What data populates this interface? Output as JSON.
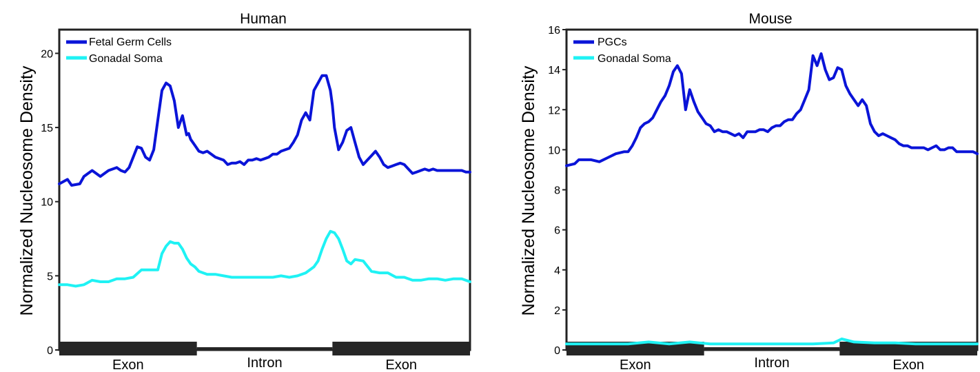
{
  "chart_data": [
    {
      "type": "line",
      "title": "Human",
      "xlabel": "",
      "ylabel": "Normalized Nucleosome Density",
      "ylim": [
        0,
        21.6
      ],
      "yticks": [
        0,
        5,
        10,
        15,
        20
      ],
      "xlim": [
        0,
        100
      ],
      "regions": [
        {
          "label": "Exon",
          "start": 0,
          "end": 33.5
        },
        {
          "label": "Intron",
          "start": 33.5,
          "end": 66.5
        },
        {
          "label": "Exon",
          "start": 66.5,
          "end": 100
        }
      ],
      "legend_position": "top-left",
      "series": [
        {
          "name": "Fetal Germ Cells",
          "color": "#0a14d8",
          "x": [
            0,
            2,
            3,
            5,
            6,
            8,
            9,
            10,
            12,
            14,
            15,
            16,
            17,
            18,
            19,
            20,
            21,
            22,
            23,
            24,
            25,
            26,
            27,
            28,
            29,
            30,
            31,
            31.5,
            32,
            33,
            34,
            35,
            36,
            37,
            38,
            39,
            40,
            41,
            42,
            43,
            44,
            45,
            46,
            47,
            48,
            49,
            50,
            51,
            52,
            53,
            54,
            55,
            56,
            57,
            58,
            59,
            60,
            61,
            62,
            63,
            64,
            65,
            66,
            66.5,
            67,
            68,
            69,
            70,
            71,
            72,
            73,
            74,
            75,
            76,
            77,
            78,
            79,
            80,
            81,
            82,
            83,
            84,
            85,
            86,
            87,
            88,
            89,
            90,
            91,
            92,
            93,
            94,
            95,
            96,
            97,
            98,
            99,
            100
          ],
          "y": [
            11.2,
            11.5,
            11.1,
            11.2,
            11.7,
            12.1,
            11.9,
            11.7,
            12.1,
            12.3,
            12.1,
            12.0,
            12.3,
            13.0,
            13.7,
            13.6,
            13.0,
            12.8,
            13.5,
            15.5,
            17.5,
            18.0,
            17.8,
            16.8,
            15.0,
            15.8,
            14.5,
            14.6,
            14.2,
            13.8,
            13.4,
            13.3,
            13.4,
            13.2,
            13.0,
            12.9,
            12.8,
            12.5,
            12.6,
            12.6,
            12.7,
            12.5,
            12.8,
            12.8,
            12.9,
            12.8,
            12.9,
            13.0,
            13.2,
            13.2,
            13.4,
            13.5,
            13.6,
            14.0,
            14.5,
            15.5,
            16.0,
            15.5,
            17.5,
            18.0,
            18.5,
            18.5,
            17.5,
            16.5,
            15.0,
            13.5,
            14.0,
            14.8,
            15.0,
            14.0,
            13.0,
            12.5,
            12.8,
            13.1,
            13.4,
            13.0,
            12.5,
            12.3,
            12.4,
            12.5,
            12.6,
            12.5,
            12.2,
            11.9,
            12.0,
            12.1,
            12.2,
            12.1,
            12.2,
            12.1,
            12.1,
            12.1,
            12.1,
            12.1,
            12.1,
            12.1,
            12.0,
            12.0
          ],
          "_note": ""
        },
        {
          "name": "Gonadal Soma",
          "color": "#1ff2f4",
          "x": [
            0,
            2,
            4,
            6,
            8,
            10,
            12,
            14,
            16,
            18,
            20,
            22,
            24,
            25,
            26,
            27,
            28,
            29,
            30,
            31,
            32,
            33,
            34,
            36,
            38,
            40,
            42,
            44,
            46,
            48,
            50,
            52,
            54,
            56,
            58,
            60,
            62,
            63,
            64,
            65,
            66,
            67,
            68,
            69,
            70,
            71,
            72,
            74,
            76,
            78,
            80,
            82,
            84,
            86,
            88,
            90,
            92,
            94,
            96,
            98,
            100
          ],
          "y": [
            4.4,
            4.4,
            4.3,
            4.4,
            4.7,
            4.6,
            4.6,
            4.8,
            4.8,
            4.9,
            5.4,
            5.4,
            5.4,
            6.5,
            7.0,
            7.3,
            7.2,
            7.2,
            6.8,
            6.2,
            5.8,
            5.6,
            5.3,
            5.1,
            5.1,
            5.0,
            4.9,
            4.9,
            4.9,
            4.9,
            4.9,
            4.9,
            5.0,
            4.9,
            5.0,
            5.2,
            5.6,
            6.0,
            6.8,
            7.5,
            8.0,
            7.9,
            7.5,
            6.8,
            6.0,
            5.8,
            6.1,
            6.0,
            5.3,
            5.2,
            5.2,
            4.9,
            4.9,
            4.7,
            4.7,
            4.8,
            4.8,
            4.7,
            4.8,
            4.8,
            4.6
          ]
        }
      ]
    },
    {
      "type": "line",
      "title": "Mouse",
      "xlabel": "",
      "ylabel": "Normalized Nucleosome Density",
      "ylim": [
        0,
        16
      ],
      "yticks": [
        0,
        2,
        4,
        6,
        8,
        10,
        12,
        14,
        16
      ],
      "xlim": [
        0,
        100
      ],
      "regions": [
        {
          "label": "Exon",
          "start": 0,
          "end": 33.5
        },
        {
          "label": "Intron",
          "start": 33.5,
          "end": 66.5
        },
        {
          "label": "Exon",
          "start": 66.5,
          "end": 100
        }
      ],
      "legend_position": "top-left",
      "series": [
        {
          "name": "PGCs",
          "color": "#0a14d8",
          "x": [
            0,
            2,
            3,
            5,
            6,
            8,
            9,
            10,
            12,
            14,
            15,
            16,
            17,
            18,
            19,
            20,
            21,
            22,
            23,
            24,
            25,
            26,
            27,
            28,
            29,
            30,
            31,
            32,
            33,
            34,
            35,
            36,
            37,
            38,
            39,
            40,
            41,
            42,
            43,
            44,
            45,
            46,
            47,
            48,
            49,
            50,
            51,
            52,
            53,
            54,
            55,
            56,
            57,
            58,
            59,
            60,
            61,
            62,
            63,
            64,
            65,
            66,
            67,
            68,
            69,
            70,
            71,
            72,
            73,
            74,
            75,
            76,
            77,
            78,
            79,
            80,
            81,
            82,
            83,
            84,
            85,
            86,
            87,
            88,
            89,
            90,
            91,
            92,
            93,
            94,
            95,
            96,
            97,
            98,
            99,
            100
          ],
          "y": [
            9.2,
            9.3,
            9.5,
            9.5,
            9.5,
            9.4,
            9.5,
            9.6,
            9.8,
            9.9,
            9.9,
            10.2,
            10.6,
            11.1,
            11.3,
            11.4,
            11.6,
            12.0,
            12.4,
            12.7,
            13.2,
            13.9,
            14.2,
            13.8,
            12.0,
            13.0,
            12.4,
            11.9,
            11.6,
            11.3,
            11.2,
            10.9,
            11.0,
            10.9,
            10.9,
            10.8,
            10.7,
            10.8,
            10.6,
            10.9,
            10.9,
            10.9,
            11.0,
            11.0,
            10.9,
            11.1,
            11.2,
            11.2,
            11.4,
            11.5,
            11.5,
            11.8,
            12.0,
            12.5,
            13.0,
            14.7,
            14.2,
            14.8,
            14.0,
            13.5,
            13.6,
            14.1,
            14.0,
            13.2,
            12.8,
            12.5,
            12.2,
            12.5,
            12.2,
            11.3,
            10.9,
            10.7,
            10.8,
            10.7,
            10.6,
            10.5,
            10.3,
            10.2,
            10.2,
            10.1,
            10.1,
            10.1,
            10.1,
            10.0,
            10.1,
            10.2,
            10.0,
            10.0,
            10.1,
            10.1,
            9.9,
            9.9,
            9.9,
            9.9,
            9.9,
            9.8
          ]
        },
        {
          "name": "Gonadal Soma",
          "color": "#1ff2f4",
          "x": [
            0,
            5,
            10,
            15,
            20,
            25,
            30,
            35,
            40,
            45,
            50,
            55,
            60,
            65,
            66,
            67,
            68,
            70,
            75,
            80,
            85,
            90,
            95,
            100
          ],
          "y": [
            0.3,
            0.3,
            0.3,
            0.3,
            0.4,
            0.3,
            0.4,
            0.3,
            0.3,
            0.3,
            0.3,
            0.3,
            0.3,
            0.35,
            0.45,
            0.55,
            0.5,
            0.4,
            0.35,
            0.35,
            0.3,
            0.3,
            0.3,
            0.3
          ]
        }
      ]
    }
  ]
}
